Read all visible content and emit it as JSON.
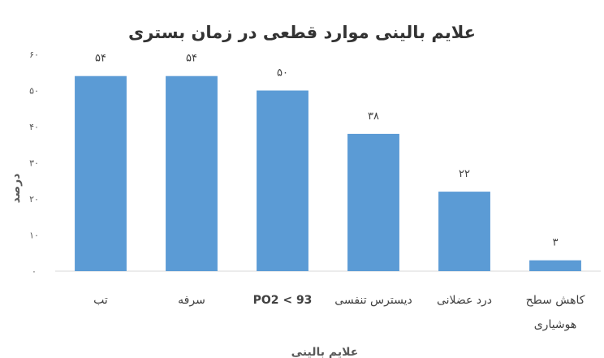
{
  "chart_data": {
    "type": "bar",
    "title": "علایم بالینی موارد قطعی در زمان بستری",
    "xlabel": "علایم بالینی",
    "ylabel": "درصد",
    "categories": [
      "تب",
      "سرفه",
      "PO2 < 93",
      "دیسترس تنفسی",
      "درد عضلانی",
      "کاهش سطح هوشیاری"
    ],
    "category_lines": [
      [
        "تب"
      ],
      [
        "سرفه"
      ],
      [
        "PO2 < 93"
      ],
      [
        "دیسترس تنفسی"
      ],
      [
        "درد عضلانی"
      ],
      [
        "کاهش سطح",
        "هوشیاری"
      ]
    ],
    "values": [
      54,
      54,
      50,
      38,
      22,
      3
    ],
    "data_labels": [
      "۵۴",
      "۵۴",
      "۵۰",
      "۳۸",
      "۲۲",
      "۳"
    ],
    "ylim": [
      0,
      60
    ],
    "yticks": [
      0,
      10,
      20,
      30,
      40,
      50,
      60
    ],
    "ytick_labels": [
      "۰",
      "۱۰",
      "۲۰",
      "۳۰",
      "۴۰",
      "۵۰",
      "۶۰"
    ],
    "bar_color": "#5B9BD5",
    "gridlines": false,
    "legend": "none"
  }
}
